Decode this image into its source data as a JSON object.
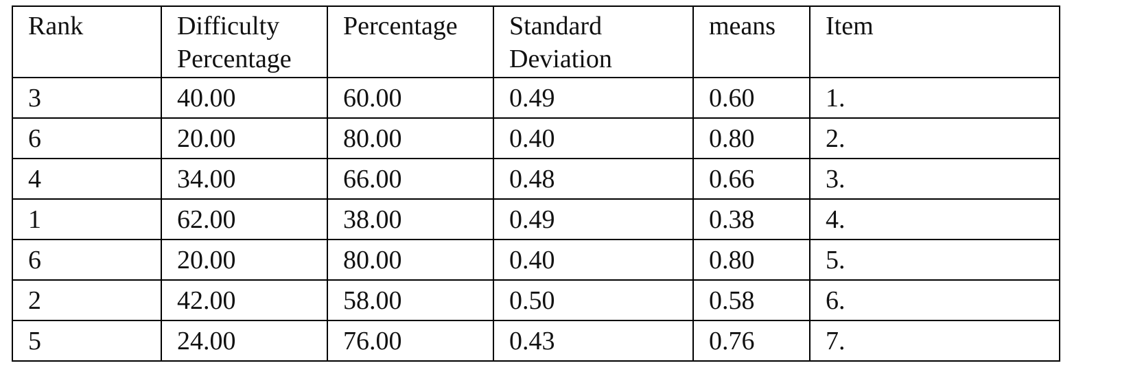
{
  "table": {
    "header": [
      "Rank",
      "Difficulty Percentage",
      "Percentage",
      "Standard Deviation",
      "means",
      "Item"
    ],
    "rows": [
      [
        "3",
        "40.00",
        "60.00",
        "0.49",
        "0.60",
        "1."
      ],
      [
        "6",
        "20.00",
        "80.00",
        "0.40",
        "0.80",
        "2."
      ],
      [
        "4",
        "34.00",
        "66.00",
        "0.48",
        "0.66",
        "3."
      ],
      [
        "1",
        "62.00",
        "38.00",
        "0.49",
        "0.38",
        "4."
      ],
      [
        "6",
        "20.00",
        "80.00",
        "0.40",
        "0.80",
        "5."
      ],
      [
        "2",
        "42.00",
        "58.00",
        "0.50",
        "0.58",
        "6."
      ],
      [
        "5",
        "24.00",
        "76.00",
        "0.43",
        "0.76",
        "7."
      ]
    ]
  }
}
